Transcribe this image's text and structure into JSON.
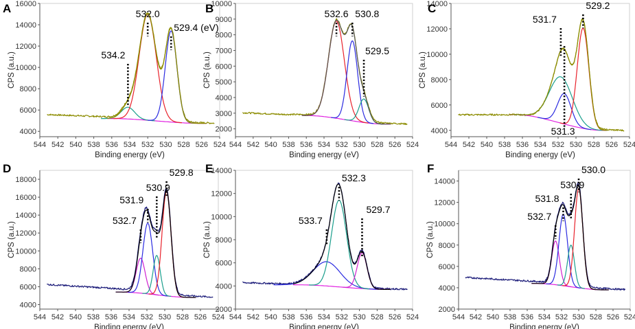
{
  "figure": {
    "colors": {
      "raw_yellow": "#8c8c00",
      "raw_navy": "#1d1d7a",
      "envelope": "#000000"
    }
  },
  "chart_data": [
    {
      "panel": "A",
      "type": "line",
      "xlabel": "Binding energy (eV)",
      "ylabel": "CPS (a.u.)",
      "xlim": [
        544,
        524
      ],
      "xticks": [
        544,
        542,
        540,
        538,
        536,
        534,
        532,
        530,
        528,
        526,
        524
      ],
      "ylim": [
        3500,
        16000
      ],
      "yticks": [
        4000,
        6000,
        8000,
        10000,
        12000,
        14000,
        16000
      ],
      "baseline": {
        "start": 5200,
        "end": 4750,
        "from": 536,
        "to": 526
      },
      "raw": {
        "start": 5600,
        "end": 4750,
        "color": "#8c8c00",
        "style": "yellow"
      },
      "envelope_color": "#8c8c00",
      "components": [
        {
          "center": 534.2,
          "height": 1100,
          "sigma": 0.75,
          "color": "#1a9e8c"
        },
        {
          "center": 532.0,
          "height": 9950,
          "sigma": 0.95,
          "color": "#e8202a"
        },
        {
          "center": 529.4,
          "height": 8550,
          "sigma": 0.65,
          "color": "#2a2ae0"
        }
      ],
      "annotations": [
        {
          "label": "534.2",
          "x": 534.2
        },
        {
          "label": "532.0",
          "x": 532.0
        },
        {
          "label": "529.4 (eV)",
          "x": 529.4
        }
      ]
    },
    {
      "panel": "B",
      "type": "line",
      "xlabel": "Binding energy (eV)",
      "ylabel": "CPS (a.u.)",
      "xlim": [
        544,
        524
      ],
      "xticks": [
        544,
        542,
        540,
        538,
        536,
        534,
        532,
        530,
        528,
        526,
        524
      ],
      "ylim": [
        1500,
        10000
      ],
      "yticks": [
        2000,
        3000,
        4000,
        5000,
        6000,
        7000,
        8000,
        9000,
        10000
      ],
      "baseline": {
        "start": 2850,
        "end": 2300,
        "from": 536,
        "to": 527
      },
      "raw": {
        "start": 3050,
        "end": 2300,
        "color": "#8c8c00",
        "style": "yellow"
      },
      "envelope_color": "#555555",
      "components": [
        {
          "center": 532.6,
          "height": 6200,
          "sigma": 0.9,
          "color": "#e8202a"
        },
        {
          "center": 530.8,
          "height": 5100,
          "sigma": 0.6,
          "color": "#2a2ae0"
        },
        {
          "center": 529.5,
          "height": 1500,
          "sigma": 0.55,
          "color": "#1a9e8c"
        }
      ],
      "annotations": [
        {
          "label": "532.6",
          "x": 532.6
        },
        {
          "label": "530.8",
          "x": 530.8
        },
        {
          "label": "529.5",
          "x": 529.5
        }
      ]
    },
    {
      "panel": "C",
      "type": "line",
      "xlabel": "Binding energy (eV)",
      "ylabel": "CPS (a.u.)",
      "xlim": [
        544,
        524
      ],
      "xticks": [
        544,
        542,
        540,
        538,
        536,
        534,
        532,
        530,
        528,
        526,
        524
      ],
      "ylim": [
        3500,
        14000
      ],
      "yticks": [
        4000,
        6000,
        8000,
        10000,
        12000,
        14000
      ],
      "baseline": {
        "start": 5250,
        "end": 4000,
        "from": 537,
        "to": 527
      },
      "raw": {
        "start": 5200,
        "end": 3950,
        "color": "#8c8c00",
        "style": "yellow"
      },
      "envelope_color": "#8c8c00",
      "components": [
        {
          "center": 531.7,
          "height": 3650,
          "sigma": 1.3,
          "color": "#1a9e8c"
        },
        {
          "center": 531.3,
          "height": 2400,
          "sigma": 0.75,
          "color": "#2a2ae0"
        },
        {
          "center": 529.2,
          "height": 7900,
          "sigma": 0.65,
          "color": "#e8202a"
        }
      ],
      "annotations": [
        {
          "label": "531.7",
          "x": 531.7
        },
        {
          "label": "529.2",
          "x": 529.2
        },
        {
          "label": "531.3",
          "x": 531.3
        }
      ]
    },
    {
      "panel": "D",
      "type": "line",
      "xlabel": "Binding energy (eV)",
      "ylabel": "CPS (a.u.)",
      "xlim": [
        544,
        524
      ],
      "xticks": [
        544,
        542,
        540,
        538,
        536,
        534,
        532,
        530,
        528,
        526,
        524
      ],
      "ylim": [
        3500,
        19000
      ],
      "yticks": [
        4000,
        6000,
        8000,
        10000,
        12000,
        14000,
        16000,
        18000
      ],
      "baseline": {
        "start": 5400,
        "end": 4800,
        "from": 535,
        "to": 527
      },
      "raw": {
        "start": 6300,
        "end": 4800,
        "color": "#1d1d7a",
        "style": "navy"
      },
      "envelope_color": "#000000",
      "components": [
        {
          "center": 532.7,
          "height": 3900,
          "sigma": 0.5,
          "color": "#d020d0"
        },
        {
          "center": 531.9,
          "height": 7900,
          "sigma": 0.55,
          "color": "#2a2ae0"
        },
        {
          "center": 530.9,
          "height": 4400,
          "sigma": 0.4,
          "color": "#1a9e8c"
        },
        {
          "center": 529.8,
          "height": 11700,
          "sigma": 0.5,
          "color": "#e8202a"
        }
      ],
      "annotations": [
        {
          "label": "532.7",
          "x": 532.7
        },
        {
          "label": "531.9",
          "x": 531.9
        },
        {
          "label": "530.9",
          "x": 530.9
        },
        {
          "label": "529.8",
          "x": 529.8
        }
      ]
    },
    {
      "panel": "E",
      "type": "line",
      "xlabel": "Binding energy (eV)",
      "ylabel": "CPS (a.u.)",
      "xlim": [
        544,
        524
      ],
      "xticks": [
        544,
        542,
        540,
        538,
        536,
        534,
        532,
        530,
        528,
        526,
        524
      ],
      "ylim": [
        2000,
        14000
      ],
      "yticks": [
        2000,
        4000,
        6000,
        8000,
        10000,
        12000,
        14000
      ],
      "baseline": {
        "start": 4100,
        "end": 3700,
        "from": 537,
        "to": 527
      },
      "raw": {
        "start": 4300,
        "end": 3700,
        "color": "#1d1d7a",
        "style": "navy"
      },
      "envelope_color": "#000000",
      "components": [
        {
          "center": 533.7,
          "height": 2100,
          "sigma": 1.5,
          "color": "#2a2ae0"
        },
        {
          "center": 532.3,
          "height": 7500,
          "sigma": 0.85,
          "color": "#1a9e8c"
        },
        {
          "center": 529.7,
          "height": 3100,
          "sigma": 0.55,
          "color": "#d020d0"
        }
      ],
      "annotations": [
        {
          "label": "533.7",
          "x": 533.7
        },
        {
          "label": "532.3",
          "x": 532.3
        },
        {
          "label": "529.7",
          "x": 529.7
        }
      ]
    },
    {
      "panel": "F",
      "type": "line",
      "xlabel": "Binding energy (eV)",
      "ylabel": "CPS (a.u.)",
      "xlim": [
        544,
        524
      ],
      "xticks": [
        544,
        542,
        540,
        538,
        536,
        534,
        532,
        530,
        528,
        526,
        524
      ],
      "ylim": [
        2000,
        15000
      ],
      "yticks": [
        2000,
        4000,
        6000,
        8000,
        10000,
        12000,
        14000
      ],
      "baseline": {
        "start": 4400,
        "end": 3800,
        "from": 535,
        "to": 527
      },
      "raw": {
        "start": 5000,
        "end": 3800,
        "color": "#1d1d7a",
        "style": "navy"
      },
      "envelope_color": "#000000",
      "components": [
        {
          "center": 532.7,
          "height": 4100,
          "sigma": 0.45,
          "color": "#d020d0"
        },
        {
          "center": 531.8,
          "height": 6700,
          "sigma": 0.5,
          "color": "#2a2ae0"
        },
        {
          "center": 530.9,
          "height": 3900,
          "sigma": 0.4,
          "color": "#1a9e8c"
        },
        {
          "center": 530.0,
          "height": 9300,
          "sigma": 0.48,
          "color": "#e8202a"
        }
      ],
      "annotations": [
        {
          "label": "532.7",
          "x": 532.7
        },
        {
          "label": "531.8",
          "x": 531.8
        },
        {
          "label": "530.9",
          "x": 530.9
        },
        {
          "label": "530.0",
          "x": 530.0
        }
      ]
    }
  ]
}
